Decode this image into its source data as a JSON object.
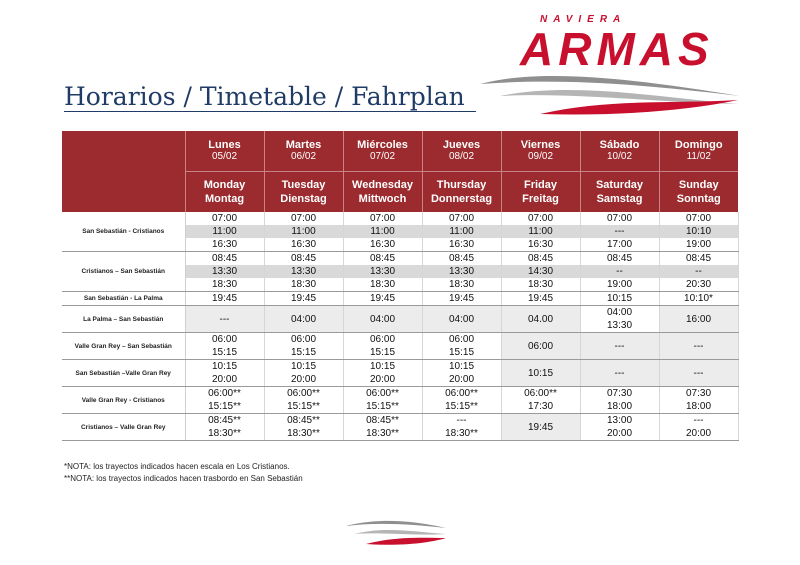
{
  "brand": {
    "small": "NAVIERA",
    "name": "ARMAS",
    "color": "#c8102e"
  },
  "title": "Horarios / Timetable / Fahrplan",
  "days": [
    {
      "es": "Lunes",
      "date": "05/02",
      "en": "Monday",
      "de": "Montag"
    },
    {
      "es": "Martes",
      "date": "06/02",
      "en": "Tuesday",
      "de": "Dienstag"
    },
    {
      "es": "Miércoles",
      "date": "07/02",
      "en": "Wednesday",
      "de": "Mittwoch"
    },
    {
      "es": "Jueves",
      "date": "08/02",
      "en": "Thursday",
      "de": "Donnerstag"
    },
    {
      "es": "Viernes",
      "date": "09/02",
      "en": "Friday",
      "de": "Freitag"
    },
    {
      "es": "Sábado",
      "date": "10/02",
      "en": "Saturday",
      "de": "Samstag"
    },
    {
      "es": "Domingo",
      "date": "11/02",
      "en": "Sunday",
      "de": "Sonntag"
    }
  ],
  "routes": [
    {
      "name": "San Sebastián - Cristianos",
      "times": [
        [
          "07:00",
          "11:00",
          "16:30"
        ],
        [
          "07:00",
          "11:00",
          "16:30"
        ],
        [
          "07:00",
          "11:00",
          "16:30"
        ],
        [
          "07:00",
          "11:00",
          "16:30"
        ],
        [
          "07:00",
          "11:00",
          "16:30"
        ],
        [
          "07:00",
          "---",
          "17:00"
        ],
        [
          "07:00",
          "10:10",
          "19:00"
        ]
      ]
    },
    {
      "name": "Cristianos – San Sebastián",
      "times": [
        [
          "08:45",
          "13:30",
          "18:30"
        ],
        [
          "08:45",
          "13:30",
          "18:30"
        ],
        [
          "08:45",
          "13:30",
          "18:30"
        ],
        [
          "08:45",
          "13:30",
          "18:30"
        ],
        [
          "08:45",
          "14:30",
          "18:30"
        ],
        [
          "08:45",
          "--",
          "19:00"
        ],
        [
          "08:45",
          "--",
          "20:30"
        ]
      ]
    },
    {
      "name": "San Sebastián - La Palma",
      "times": [
        [
          "19:45"
        ],
        [
          "19:45"
        ],
        [
          "19:45"
        ],
        [
          "19:45"
        ],
        [
          "19:45"
        ],
        [
          "10:15"
        ],
        [
          "10:10*"
        ]
      ]
    },
    {
      "name": "La Palma – San Sebastián",
      "times": [
        [
          "---"
        ],
        [
          "04:00"
        ],
        [
          "04:00"
        ],
        [
          "04:00"
        ],
        [
          "04.00"
        ],
        [
          "04:00",
          "13:30"
        ],
        [
          "16:00"
        ]
      ]
    },
    {
      "name": "Valle Gran Rey – San Sebastián",
      "times": [
        [
          "06:00",
          "15:15"
        ],
        [
          "06:00",
          "15:15"
        ],
        [
          "06:00",
          "15:15"
        ],
        [
          "06:00",
          "15:15"
        ],
        [
          "06:00"
        ],
        [
          "---"
        ],
        [
          "---"
        ]
      ]
    },
    {
      "name": "San Sebastián –Valle Gran Rey",
      "times": [
        [
          "10:15",
          "20:00"
        ],
        [
          "10:15",
          "20:00"
        ],
        [
          "10:15",
          "20:00"
        ],
        [
          "10:15",
          "20:00"
        ],
        [
          "10:15"
        ],
        [
          "---"
        ],
        [
          "---"
        ]
      ]
    },
    {
      "name": "Valle Gran Rey - Cristianos",
      "times": [
        [
          "06:00**",
          "15:15**"
        ],
        [
          "06:00**",
          "15:15**"
        ],
        [
          "06:00**",
          "15:15**"
        ],
        [
          "06:00**",
          "15:15**"
        ],
        [
          "06:00**",
          "17:30"
        ],
        [
          "07:30",
          "18:00"
        ],
        [
          "07:30",
          "18:00"
        ]
      ]
    },
    {
      "name": "Cristianos – Valle Gran Rey",
      "times": [
        [
          "08:45**",
          "18:30**"
        ],
        [
          "08:45**",
          "18:30**"
        ],
        [
          "08:45**",
          "18:30**"
        ],
        [
          "---",
          "18:30**"
        ],
        [
          "19:45"
        ],
        [
          "13:00",
          "20:00"
        ],
        [
          "---",
          "20:00"
        ]
      ]
    }
  ],
  "notes": [
    "*NOTA: los trayectos indicados hacen escala en Los Cristianos.",
    "**NOTA: los trayectos indicados hacen trasbordo en San Sebastián"
  ]
}
